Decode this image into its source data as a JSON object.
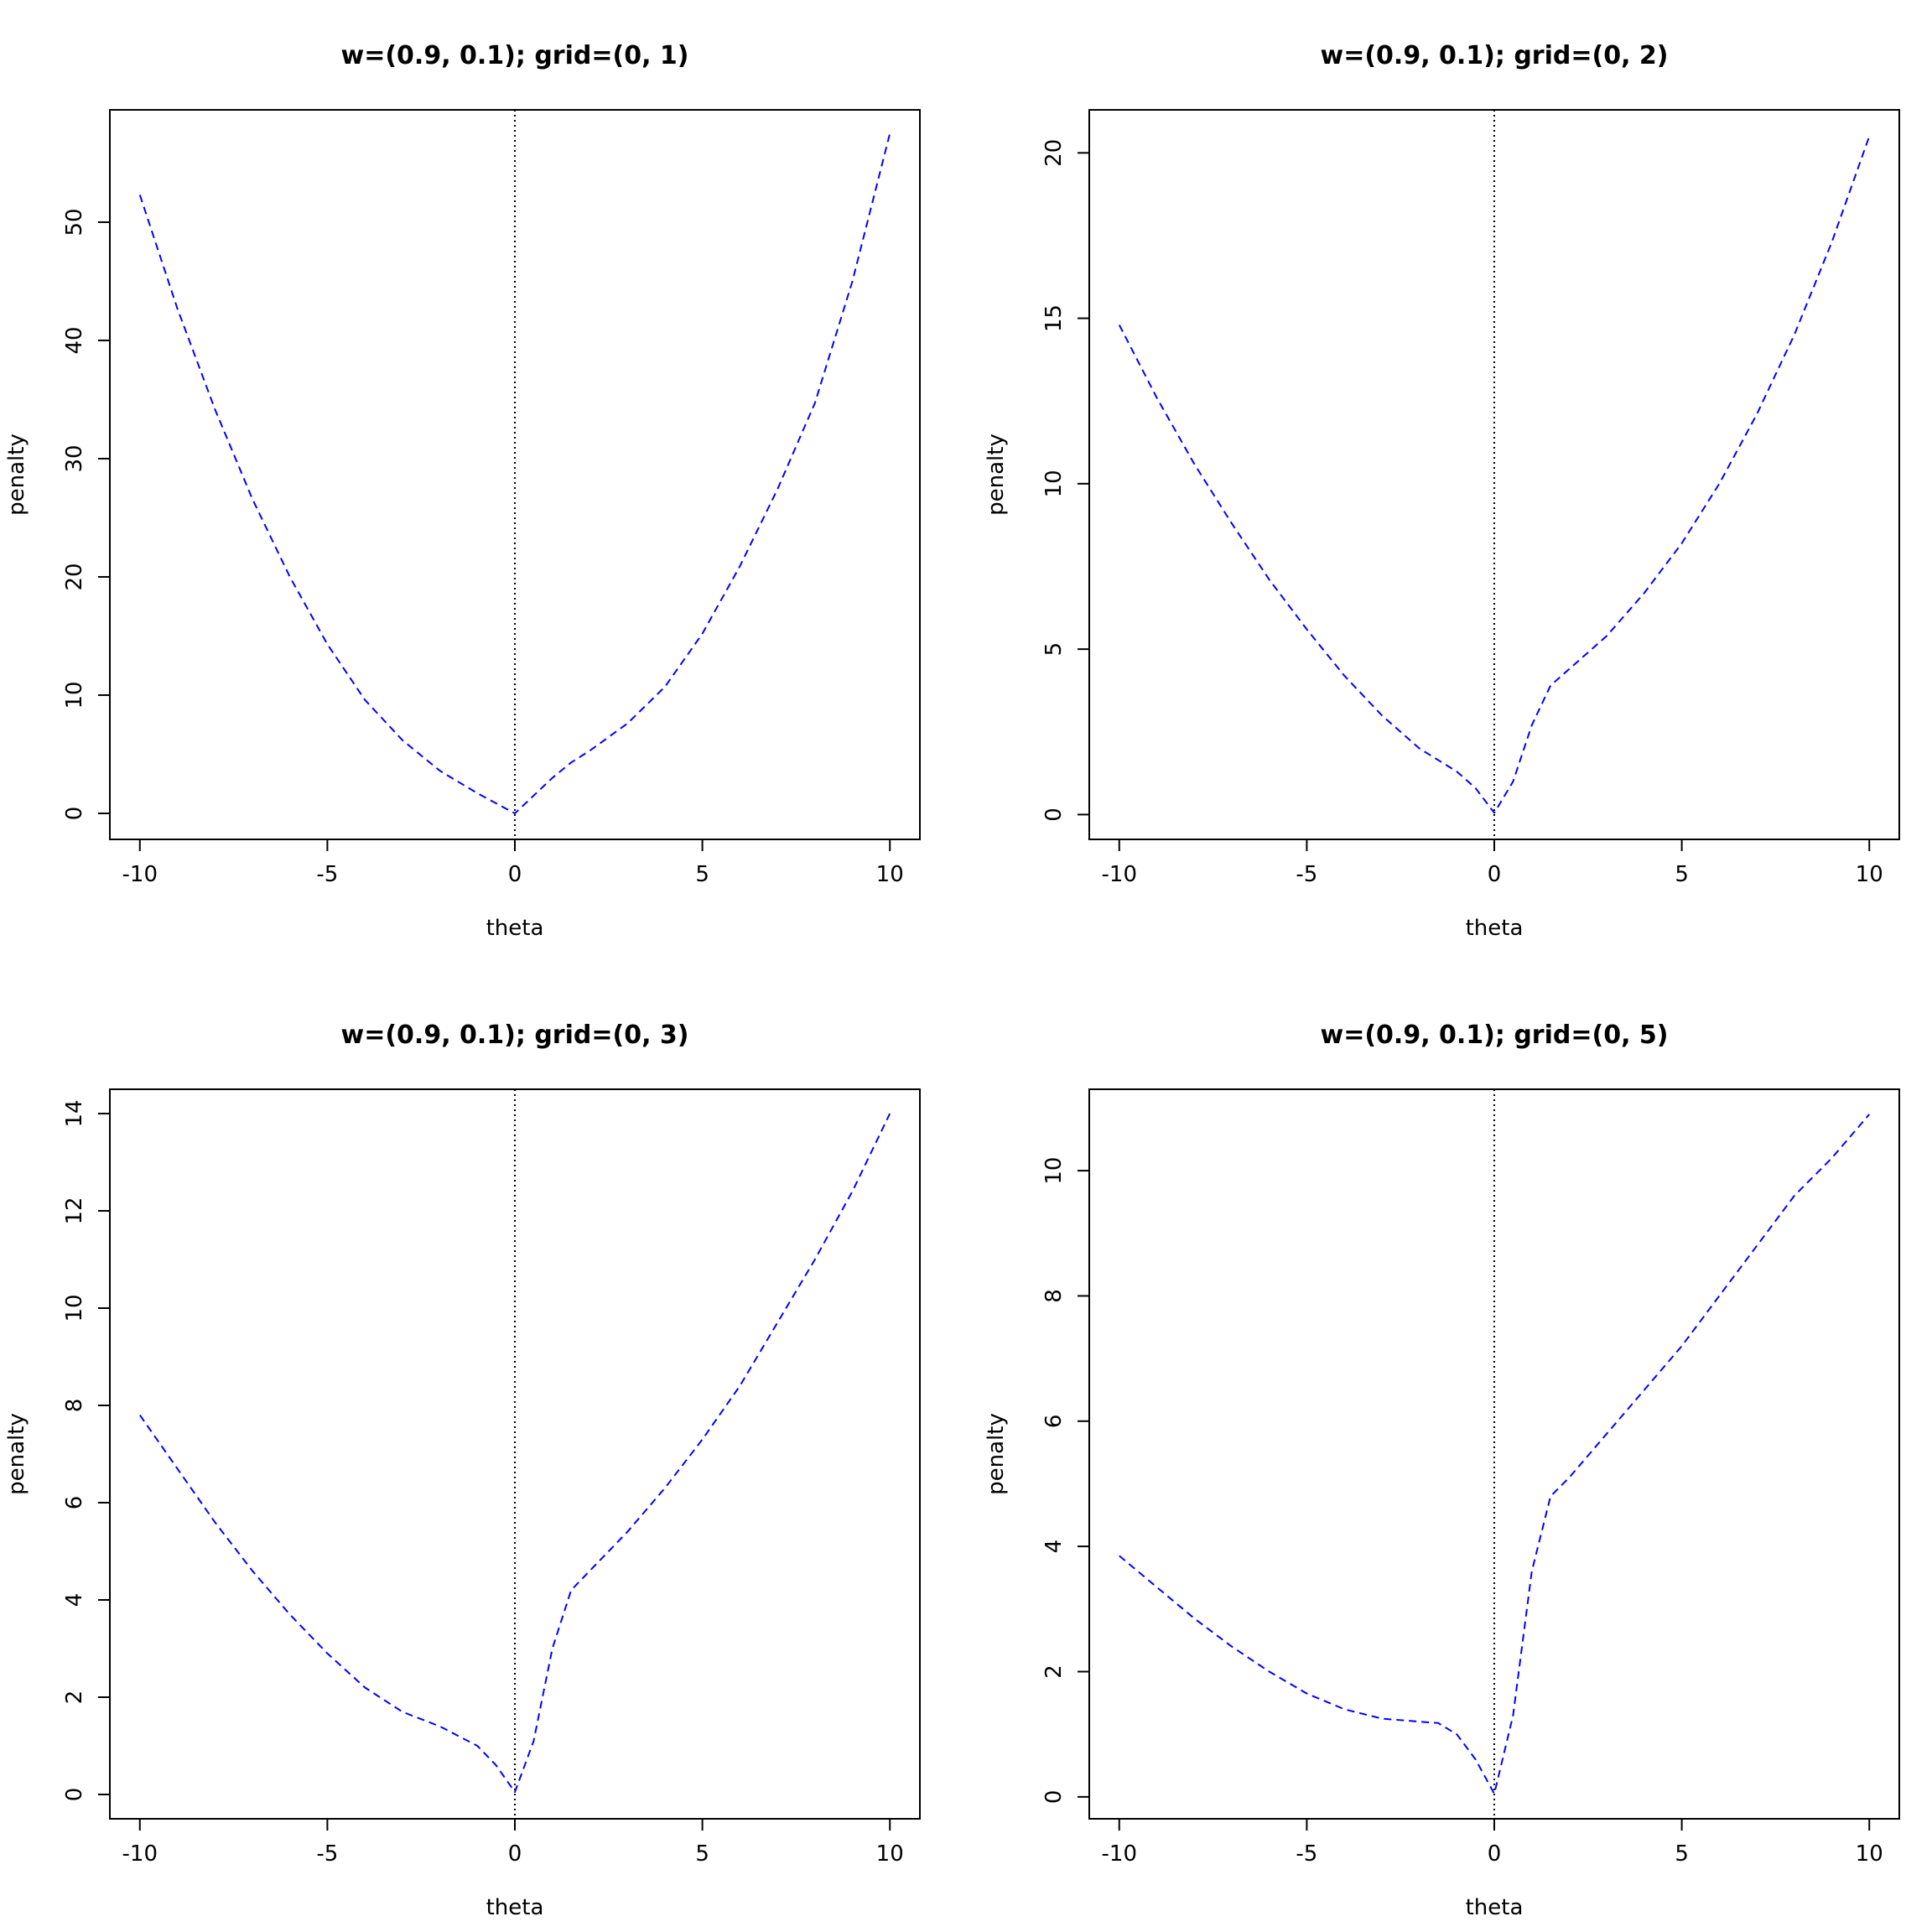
{
  "figure_colors": {
    "series": "#0000ff",
    "reference_line": "#000000",
    "axes": "#000000",
    "background": "#ffffff"
  },
  "chart_data": [
    {
      "type": "line",
      "title": "w=(0.9, 0.1); grid=(0, 1)",
      "xlabel": "theta",
      "ylabel": "penalty",
      "xlim": [
        -10.8,
        10.8
      ],
      "ylim": [
        -2.2,
        59.5
      ],
      "xticks": [
        -10,
        -5,
        0,
        5,
        10
      ],
      "xtick_labels": [
        "-10",
        "-5",
        "0",
        "5",
        "10"
      ],
      "yticks": [
        0,
        10,
        20,
        30,
        40,
        50
      ],
      "ytick_labels": [
        "0",
        "10",
        "20",
        "30",
        "40",
        "50"
      ],
      "grid": false,
      "reference_vline_x": 0,
      "series": [
        {
          "line_style": "dashed",
          "x": [
            -10,
            -9,
            -8,
            -7,
            -6,
            -5,
            -4,
            -3,
            -2,
            -1,
            0,
            0.5,
            1,
            1.5,
            2,
            3,
            4,
            5,
            6,
            7,
            8,
            9,
            10
          ],
          "y": [
            52.3,
            42.7,
            34.2,
            26.6,
            20.0,
            14.3,
            9.6,
            6.2,
            3.6,
            1.7,
            0.0,
            1.5,
            3.0,
            4.3,
            5.3,
            7.6,
            10.7,
            15.2,
            20.9,
            27.4,
            34.7,
            45.0,
            57.5
          ]
        }
      ]
    },
    {
      "type": "line",
      "title": "w=(0.9, 0.1); grid=(0, 2)",
      "xlabel": "theta",
      "ylabel": "penalty",
      "xlim": [
        -10.8,
        10.8
      ],
      "ylim": [
        -0.75,
        21.3
      ],
      "xticks": [
        -10,
        -5,
        0,
        5,
        10
      ],
      "xtick_labels": [
        "-10",
        "-5",
        "0",
        "5",
        "10"
      ],
      "yticks": [
        0,
        5,
        10,
        15,
        20
      ],
      "ytick_labels": [
        "0",
        "5",
        "10",
        "15",
        "20"
      ],
      "grid": false,
      "reference_vline_x": 0,
      "series": [
        {
          "line_style": "dashed",
          "x": [
            -10,
            -9,
            -8,
            -7,
            -6,
            -5,
            -4,
            -3,
            -2,
            -1,
            -0.5,
            0,
            0.5,
            1,
            1.5,
            2,
            3,
            4,
            5,
            6,
            7,
            8,
            9,
            10
          ],
          "y": [
            14.8,
            12.6,
            10.6,
            8.8,
            7.1,
            5.6,
            4.2,
            3.0,
            2.0,
            1.3,
            0.8,
            0.05,
            1.0,
            2.7,
            3.9,
            4.4,
            5.4,
            6.7,
            8.2,
            10.0,
            12.1,
            14.5,
            17.3,
            20.5
          ]
        }
      ]
    },
    {
      "type": "line",
      "title": "w=(0.9, 0.1); grid=(0, 3)",
      "xlabel": "theta",
      "ylabel": "penalty",
      "xlim": [
        -10.8,
        10.8
      ],
      "ylim": [
        -0.5,
        14.5
      ],
      "xticks": [
        -10,
        -5,
        0,
        5,
        10
      ],
      "xtick_labels": [
        "-10",
        "-5",
        "0",
        "5",
        "10"
      ],
      "yticks": [
        0,
        2,
        4,
        6,
        8,
        10,
        12,
        14
      ],
      "ytick_labels": [
        "0",
        "2",
        "4",
        "6",
        "8",
        "10",
        "12",
        "14"
      ],
      "grid": false,
      "reference_vline_x": 0,
      "series": [
        {
          "line_style": "dashed",
          "x": [
            -10,
            -9,
            -8,
            -7,
            -6,
            -5,
            -4,
            -3,
            -2,
            -1,
            -0.5,
            0,
            0.5,
            1,
            1.5,
            2,
            3,
            4,
            5,
            6,
            7,
            8,
            9,
            10
          ],
          "y": [
            7.8,
            6.7,
            5.6,
            4.6,
            3.7,
            2.9,
            2.2,
            1.7,
            1.4,
            1.0,
            0.6,
            0.05,
            1.1,
            3.0,
            4.2,
            4.6,
            5.4,
            6.3,
            7.3,
            8.4,
            9.7,
            11.0,
            12.4,
            14.0
          ]
        }
      ]
    },
    {
      "type": "line",
      "title": "w=(0.9, 0.1); grid=(0, 5)",
      "xlabel": "theta",
      "ylabel": "penalty",
      "xlim": [
        -10.8,
        10.8
      ],
      "ylim": [
        -0.35,
        11.3
      ],
      "xticks": [
        -10,
        -5,
        0,
        5,
        10
      ],
      "xtick_labels": [
        "-10",
        "-5",
        "0",
        "5",
        "10"
      ],
      "yticks": [
        0,
        2,
        4,
        6,
        8,
        10
      ],
      "ytick_labels": [
        "0",
        "2",
        "4",
        "6",
        "8",
        "10"
      ],
      "grid": false,
      "reference_vline_x": 0,
      "series": [
        {
          "line_style": "dashed",
          "x": [
            -10,
            -9,
            -8,
            -7,
            -6,
            -5,
            -4,
            -3,
            -2,
            -1.5,
            -1,
            -0.5,
            0,
            0.5,
            1,
            1.5,
            2,
            3,
            4,
            5,
            6,
            7,
            8,
            9,
            10
          ],
          "y": [
            3.85,
            3.35,
            2.85,
            2.4,
            2.0,
            1.65,
            1.4,
            1.25,
            1.2,
            1.18,
            1.0,
            0.6,
            0.05,
            1.3,
            3.6,
            4.8,
            5.1,
            5.8,
            6.5,
            7.2,
            8.0,
            8.8,
            9.6,
            10.2,
            10.9
          ]
        }
      ]
    }
  ]
}
